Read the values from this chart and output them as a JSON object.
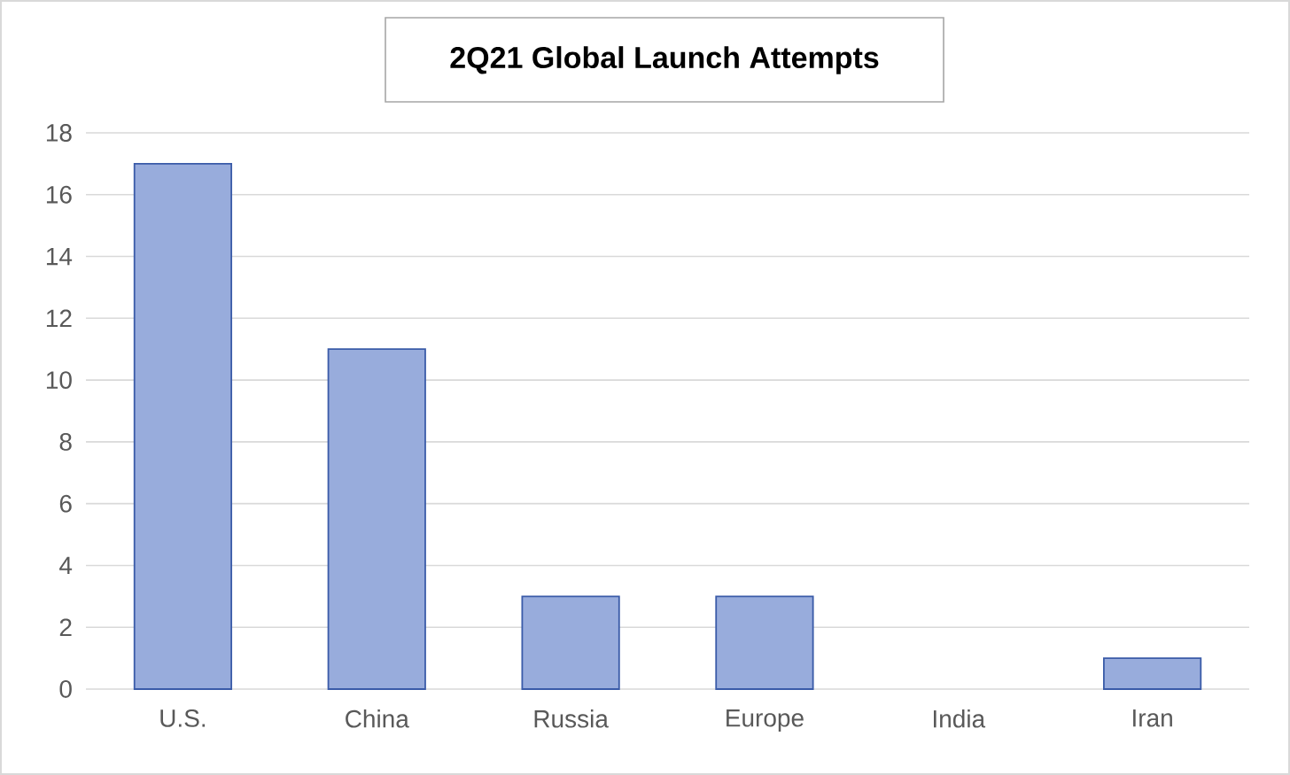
{
  "chart_data": {
    "type": "bar",
    "title": "2Q21 Global Launch Attempts",
    "categories": [
      "U.S.",
      "China",
      "Russia",
      "Europe",
      "India",
      "Iran"
    ],
    "values": [
      17,
      11,
      3,
      3,
      0,
      1
    ],
    "color": "#98acdc",
    "ylim": [
      0,
      18
    ],
    "yticks": [
      0,
      2,
      4,
      6,
      8,
      10,
      12,
      14,
      16,
      18
    ],
    "grid": "y"
  }
}
